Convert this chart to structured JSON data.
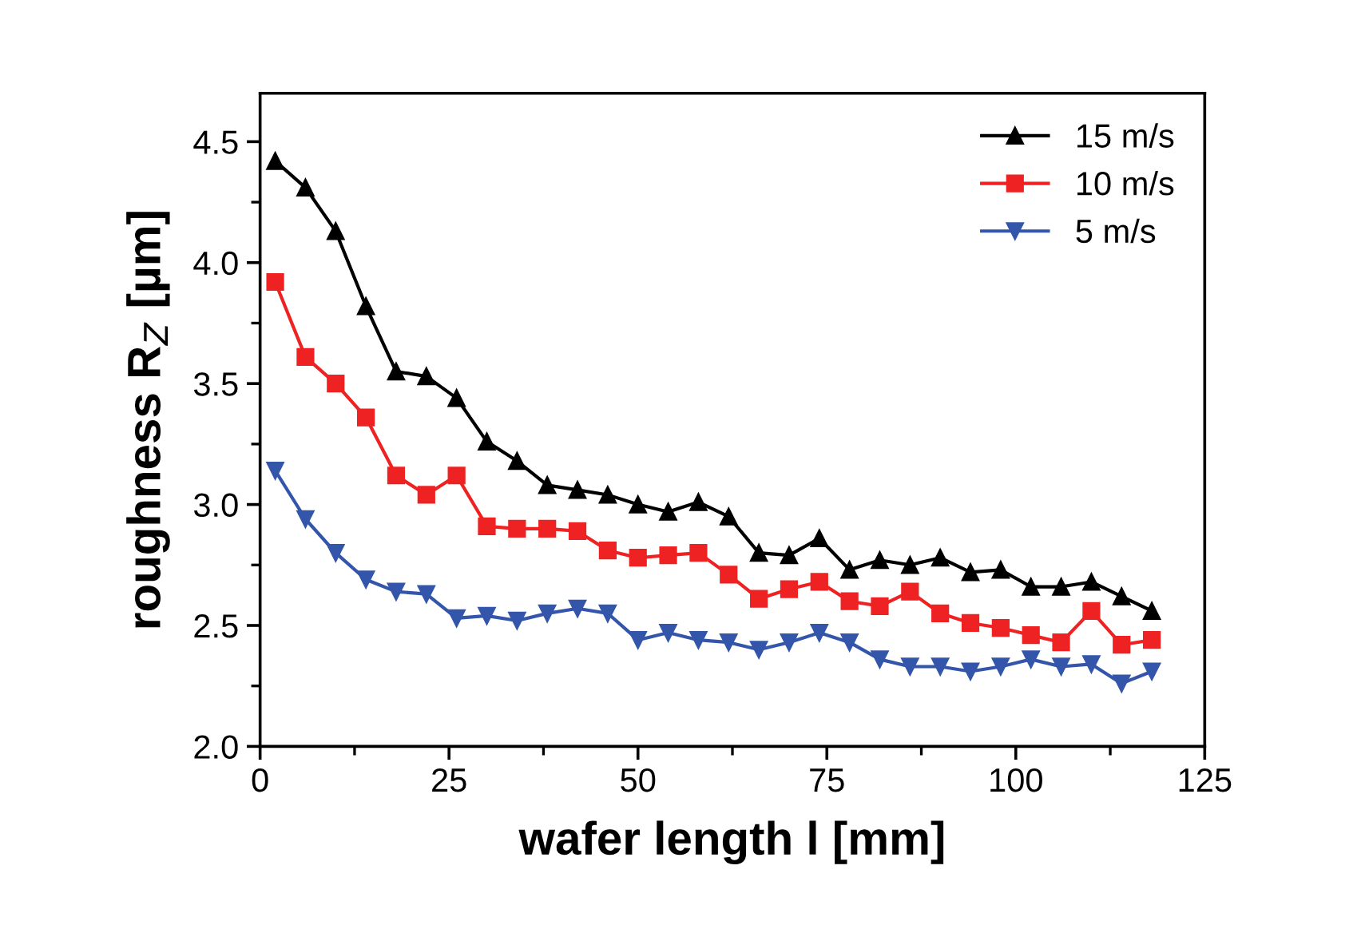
{
  "chart_data": {
    "type": "line",
    "xlabel": "wafer length l [mm]",
    "ylabel": "roughness R$_{Z}$ [µm]",
    "x": [
      2,
      6,
      10,
      14,
      18,
      22,
      26,
      30,
      34,
      38,
      42,
      46,
      50,
      54,
      58,
      62,
      66,
      70,
      74,
      78,
      82,
      86,
      90,
      94,
      98,
      102,
      106,
      110,
      114,
      118
    ],
    "series": [
      {
        "name": "15 m/s",
        "color": "#000000",
        "marker": "triangle",
        "values": [
          4.42,
          4.31,
          4.13,
          3.82,
          3.55,
          3.53,
          3.44,
          3.26,
          3.18,
          3.08,
          3.06,
          3.04,
          3.0,
          2.97,
          3.01,
          2.95,
          2.8,
          2.79,
          2.86,
          2.73,
          2.77,
          2.75,
          2.78,
          2.72,
          2.73,
          2.66,
          2.66,
          2.68,
          2.62,
          2.56
        ]
      },
      {
        "name": "10 m/s",
        "color": "#ee2222",
        "marker": "square",
        "values": [
          3.92,
          3.61,
          3.5,
          3.36,
          3.12,
          3.04,
          3.12,
          2.91,
          2.9,
          2.9,
          2.89,
          2.81,
          2.78,
          2.79,
          2.8,
          2.71,
          2.61,
          2.65,
          2.68,
          2.6,
          2.58,
          2.64,
          2.55,
          2.51,
          2.49,
          2.46,
          2.43,
          2.56,
          2.42,
          2.44
        ]
      },
      {
        "name": "5 m/s",
        "color": "#3355aa",
        "marker": "triangle_down",
        "values": [
          3.14,
          2.94,
          2.8,
          2.69,
          2.64,
          2.63,
          2.53,
          2.54,
          2.52,
          2.55,
          2.57,
          2.55,
          2.44,
          2.47,
          2.44,
          2.43,
          2.4,
          2.43,
          2.47,
          2.43,
          2.36,
          2.33,
          2.33,
          2.31,
          2.33,
          2.36,
          2.33,
          2.34,
          2.26,
          2.31
        ]
      }
    ],
    "xlim": [
      0,
      125
    ],
    "xticks": [
      0,
      25,
      50,
      75,
      100,
      125
    ],
    "ylim": [
      2.0,
      4.7
    ],
    "yticks": [
      {
        "value": 2.0,
        "label": "2.0"
      },
      {
        "value": 2.5,
        "label": "2.5"
      },
      {
        "value": 3.0,
        "label": "3.0"
      },
      {
        "value": 3.5,
        "label": "3.5"
      },
      {
        "value": 4.0,
        "label": "4.0"
      },
      {
        "value": 4.5,
        "label": "4.5"
      }
    ],
    "grid": false,
    "legend": "top right",
    "line_style": "solid"
  }
}
